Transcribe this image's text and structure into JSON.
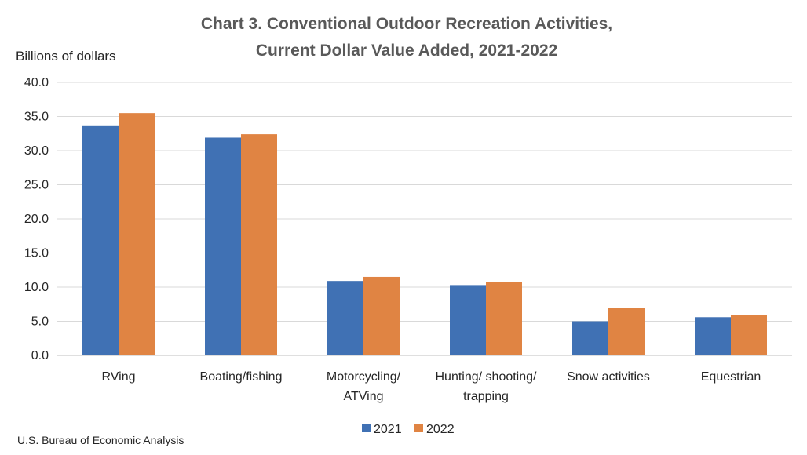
{
  "chart_data": {
    "type": "bar",
    "title": [
      "Chart 3. Conventional Outdoor Recreation Activities,",
      "Current Dollar Value Added, 2021-2022"
    ],
    "ylabel": "Billions of dollars",
    "xlabel": "",
    "ylim": [
      0,
      40
    ],
    "yticks": [
      "0.0",
      "5.0",
      "10.0",
      "15.0",
      "20.0",
      "25.0",
      "30.0",
      "35.0",
      "40.0"
    ],
    "grid": true,
    "legend_position": "bottom",
    "categories": [
      [
        "RVing"
      ],
      [
        "Boating/fishing"
      ],
      [
        "Motorcycling/",
        "ATVing"
      ],
      [
        "Hunting/ shooting/",
        "trapping"
      ],
      [
        "Snow activities"
      ],
      [
        "Equestrian"
      ]
    ],
    "series": [
      {
        "name": "2021",
        "color": "#4071b4",
        "values": [
          33.7,
          31.9,
          10.9,
          10.3,
          5.0,
          5.6
        ]
      },
      {
        "name": "2022",
        "color": "#e08443",
        "values": [
          35.5,
          32.4,
          11.5,
          10.7,
          7.0,
          5.9
        ]
      }
    ],
    "source": "U.S. Bureau of Economic Analysis"
  }
}
